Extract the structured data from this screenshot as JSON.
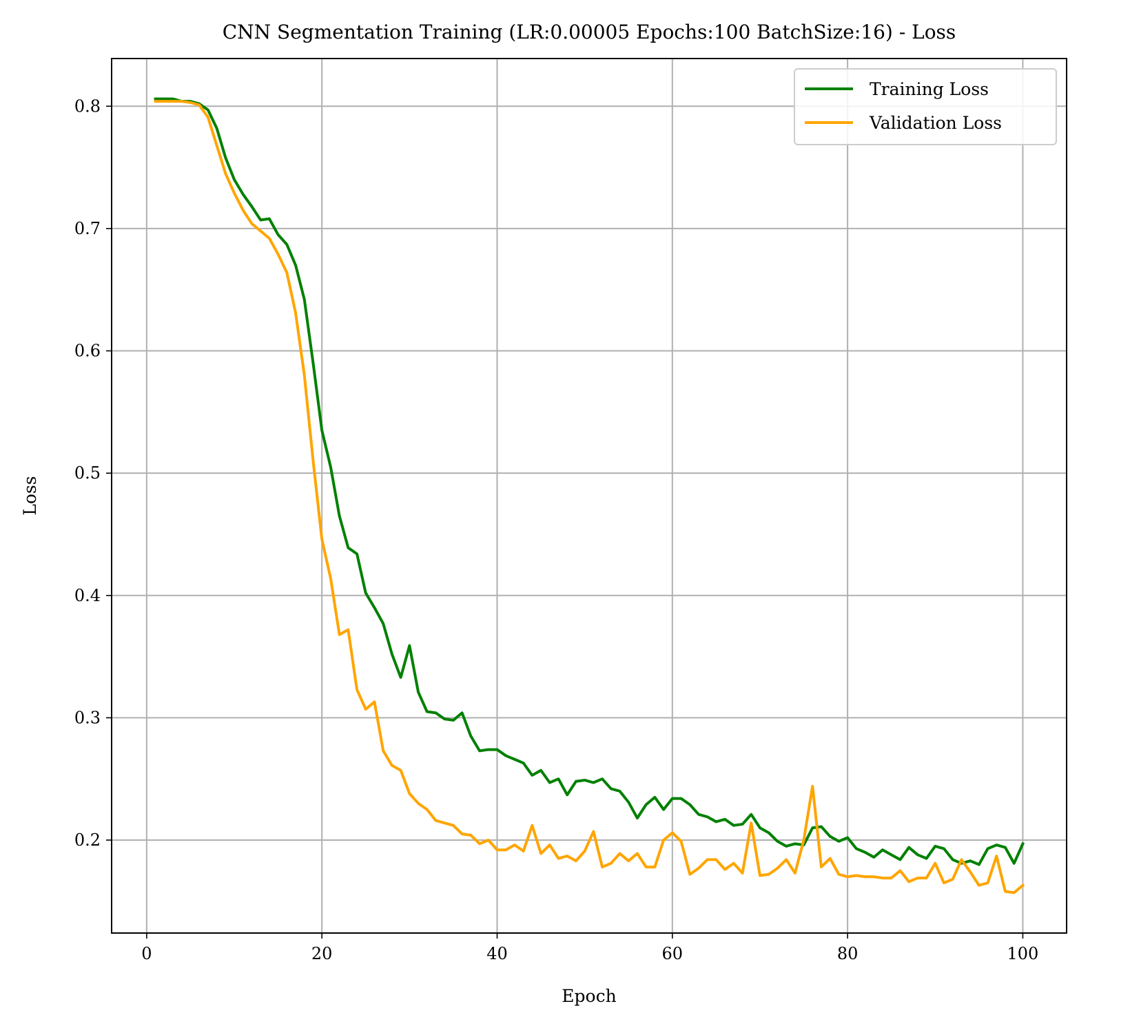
{
  "chart_data": {
    "type": "line",
    "title": "CNN Segmentation Training (LR:0.00005 Epochs:100 BatchSize:16) - Loss",
    "xlabel": "Epoch",
    "ylabel": "Loss",
    "xlim": [
      -4,
      105
    ],
    "ylim": [
      0.124,
      0.839
    ],
    "xticks": [
      0,
      20,
      40,
      60,
      80,
      100
    ],
    "xtick_labels": [
      "0",
      "20",
      "40",
      "60",
      "80",
      "100"
    ],
    "yticks": [
      0.2,
      0.3,
      0.4,
      0.5,
      0.6,
      0.7,
      0.8
    ],
    "ytick_labels": [
      "0.2",
      "0.3",
      "0.4",
      "0.5",
      "0.6",
      "0.7",
      "0.8"
    ],
    "grid": true,
    "legend_position": "top-right",
    "x": [
      1,
      2,
      3,
      4,
      5,
      6,
      7,
      8,
      9,
      10,
      11,
      12,
      13,
      14,
      15,
      16,
      17,
      18,
      19,
      20,
      21,
      22,
      23,
      24,
      25,
      26,
      27,
      28,
      29,
      30,
      31,
      32,
      33,
      34,
      35,
      36,
      37,
      38,
      39,
      40,
      41,
      42,
      43,
      44,
      45,
      46,
      47,
      48,
      49,
      50,
      51,
      52,
      53,
      54,
      55,
      56,
      57,
      58,
      59,
      60,
      61,
      62,
      63,
      64,
      65,
      66,
      67,
      68,
      69,
      70,
      71,
      72,
      73,
      74,
      75,
      76,
      77,
      78,
      79,
      80,
      81,
      82,
      83,
      84,
      85,
      86,
      87,
      88,
      89,
      90,
      91,
      92,
      93,
      94,
      95,
      96,
      97,
      98,
      99,
      100
    ],
    "series": [
      {
        "name": "Training Loss",
        "color": "#008000",
        "values": [
          0.806,
          0.806,
          0.806,
          0.804,
          0.804,
          0.802,
          0.797,
          0.782,
          0.758,
          0.74,
          0.728,
          0.718,
          0.707,
          0.708,
          0.695,
          0.687,
          0.67,
          0.642,
          0.59,
          0.535,
          0.505,
          0.465,
          0.439,
          0.434,
          0.402,
          0.39,
          0.377,
          0.352,
          0.333,
          0.359,
          0.321,
          0.305,
          0.304,
          0.299,
          0.298,
          0.304,
          0.285,
          0.273,
          0.274,
          0.274,
          0.269,
          0.266,
          0.263,
          0.253,
          0.257,
          0.247,
          0.25,
          0.237,
          0.248,
          0.249,
          0.247,
          0.25,
          0.242,
          0.24,
          0.231,
          0.218,
          0.229,
          0.235,
          0.225,
          0.234,
          0.234,
          0.229,
          0.221,
          0.219,
          0.215,
          0.217,
          0.212,
          0.213,
          0.221,
          0.21,
          0.206,
          0.199,
          0.195,
          0.197,
          0.196,
          0.21,
          0.211,
          0.203,
          0.199,
          0.202,
          0.193,
          0.19,
          0.186,
          0.192,
          0.188,
          0.184,
          0.194,
          0.188,
          0.185,
          0.195,
          0.193,
          0.184,
          0.181,
          0.183,
          0.18,
          0.193,
          0.196,
          0.194,
          0.181,
          0.197
        ]
      },
      {
        "name": "Validation Loss",
        "color": "#ffa500",
        "values": [
          0.804,
          0.804,
          0.804,
          0.804,
          0.803,
          0.801,
          0.791,
          0.768,
          0.745,
          0.729,
          0.715,
          0.704,
          0.698,
          0.692,
          0.679,
          0.664,
          0.631,
          0.58,
          0.51,
          0.446,
          0.414,
          0.368,
          0.372,
          0.323,
          0.307,
          0.313,
          0.273,
          0.261,
          0.257,
          0.238,
          0.23,
          0.225,
          0.216,
          0.214,
          0.212,
          0.205,
          0.204,
          0.197,
          0.2,
          0.192,
          0.192,
          0.196,
          0.191,
          0.212,
          0.189,
          0.196,
          0.185,
          0.187,
          0.183,
          0.191,
          0.207,
          0.178,
          0.181,
          0.189,
          0.183,
          0.189,
          0.178,
          0.178,
          0.2,
          0.206,
          0.199,
          0.172,
          0.177,
          0.184,
          0.184,
          0.176,
          0.181,
          0.173,
          0.214,
          0.171,
          0.172,
          0.177,
          0.184,
          0.173,
          0.2,
          0.244,
          0.178,
          0.185,
          0.172,
          0.17,
          0.171,
          0.17,
          0.17,
          0.169,
          0.169,
          0.175,
          0.166,
          0.169,
          0.169,
          0.181,
          0.165,
          0.168,
          0.184,
          0.174,
          0.163,
          0.165,
          0.187,
          0.158,
          0.157,
          0.163
        ]
      }
    ]
  }
}
